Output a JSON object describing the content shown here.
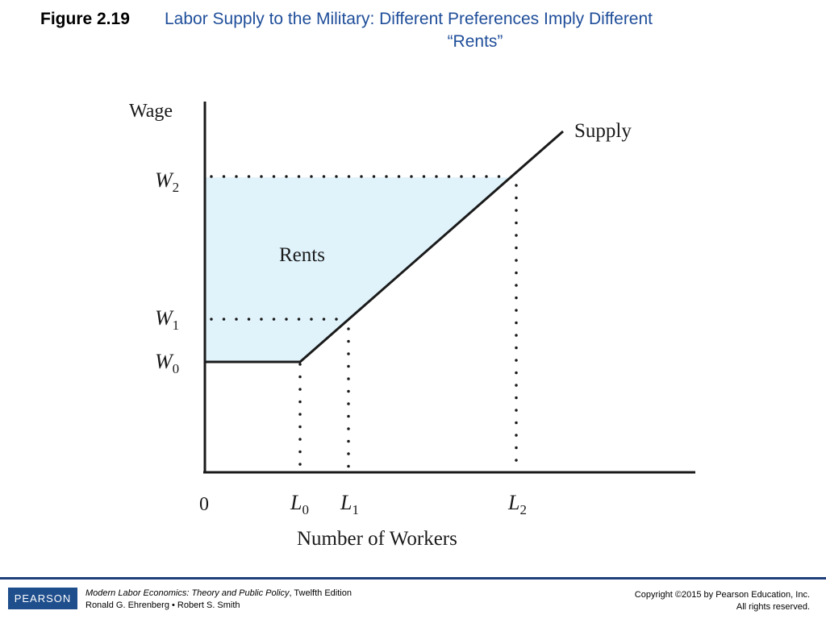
{
  "figure": {
    "number": "Figure 2.19",
    "title_line1": "Labor Supply to the Military: Different Preferences Imply Different",
    "title_line2": "“Rents”"
  },
  "diagram": {
    "y_axis_label": "Wage",
    "x_axis_label": "Number of Workers",
    "curve_label": "Supply",
    "region_label": "Rents",
    "origin_label": "0",
    "y_ticks": [
      {
        "base": "W",
        "sub": "2"
      },
      {
        "base": "W",
        "sub": "1"
      },
      {
        "base": "W",
        "sub": "0"
      }
    ],
    "x_ticks": [
      {
        "base": "L",
        "sub": "0"
      },
      {
        "base": "L",
        "sub": "1"
      },
      {
        "base": "L",
        "sub": "2"
      }
    ],
    "colors": {
      "rents_fill": "#e0f3fb",
      "line": "#1a1a1a",
      "title": "#1f4e9a"
    }
  },
  "footer": {
    "logo": "PEARSON",
    "book_title": "Modern Labor Economics: Theory and Public Policy",
    "edition": ", Twelfth Edition",
    "authors": "Ronald G. Ehrenberg • Robert S. Smith",
    "copyright": "Copyright ©2015 by Pearson Education, Inc.",
    "rights": "All rights reserved."
  }
}
